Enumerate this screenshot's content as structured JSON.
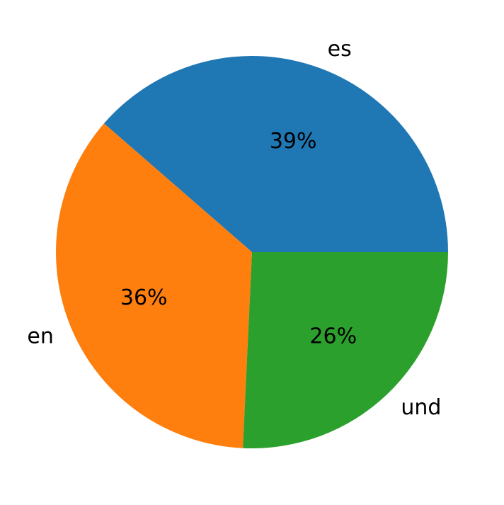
{
  "chart_data": {
    "type": "pie",
    "categories": [
      "es",
      "en",
      "und"
    ],
    "values": [
      39,
      36,
      26
    ],
    "value_labels": [
      "39%",
      "36%",
      "26%"
    ],
    "colors": [
      "#1f77b4",
      "#ff7f0e",
      "#2ca02c"
    ]
  }
}
